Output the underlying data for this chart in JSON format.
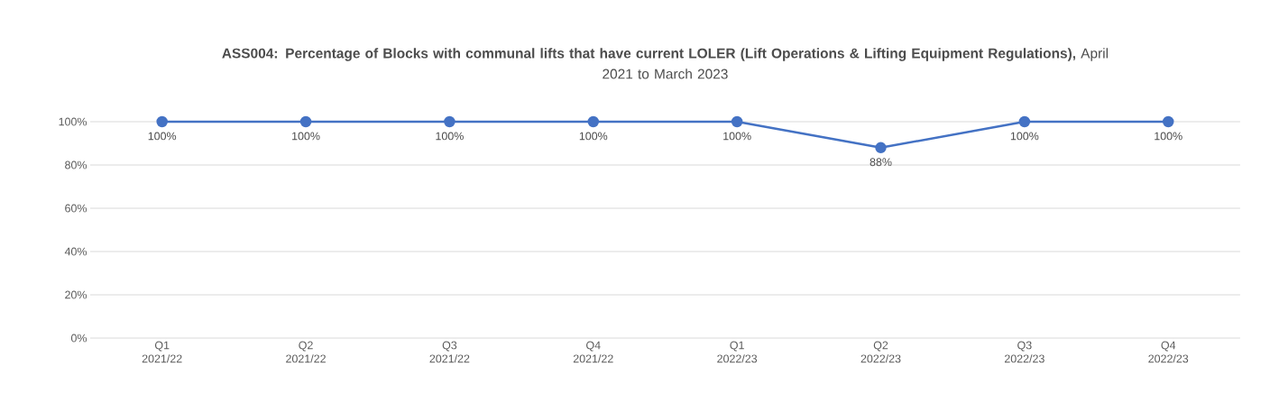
{
  "chart_data": {
    "type": "line",
    "title": "**ASS004: Percentage of Blocks with communal lifts that have current LOLER (Lift Operations & Lifting Equipment Regulations),** April 2021 to March 2023",
    "categories": [
      "Q1 2021/22",
      "Q2 2021/22",
      "Q3 2021/22",
      "Q4 2021/22",
      "Q1 2022/23",
      "Q2 2022/23",
      "Q3 2022/23",
      "Q4 2022/23"
    ],
    "values": [
      100,
      100,
      100,
      100,
      100,
      88,
      100,
      100
    ],
    "value_labels": [
      "100%",
      "100%",
      "100%",
      "100%",
      "100%",
      "88%",
      "100%",
      "100%"
    ],
    "color": "#4472c4",
    "ylim": [
      0,
      100
    ],
    "yticks": [
      {
        "value": 0,
        "label": "0%"
      },
      {
        "value": 20,
        "label": "20%"
      },
      {
        "value": 40,
        "label": "40%"
      },
      {
        "value": 60,
        "label": "60%"
      },
      {
        "value": 80,
        "label": "80%"
      },
      {
        "value": 100,
        "label": "100%"
      }
    ],
    "grid": "y",
    "marker": "circle",
    "line_style": "solid"
  }
}
